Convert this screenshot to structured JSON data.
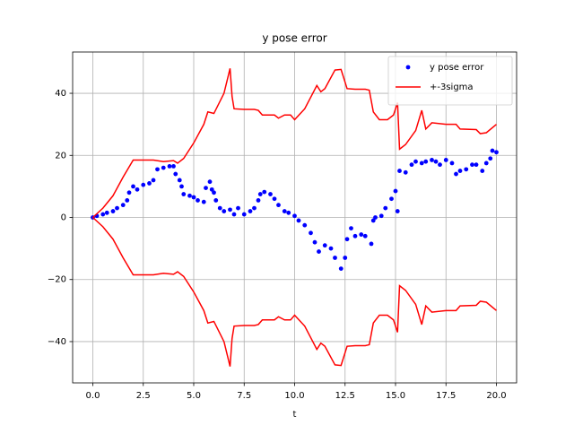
{
  "chart_data": {
    "type": "line",
    "title": "y pose error",
    "xlabel": "t",
    "xlim": [
      -1,
      21
    ],
    "ylim": [
      -53.3,
      53.3
    ],
    "xticks": [
      {
        "value": 0,
        "label": "0.0"
      },
      2.5,
      {
        "value": 5,
        "label": "5.0"
      },
      7.5,
      {
        "value": 10,
        "label": "10.0"
      },
      12.5,
      {
        "value": 15,
        "label": "15.0"
      },
      17.5,
      {
        "value": 20,
        "label": "20.0"
      }
    ],
    "yticks": [
      {
        "value": -40,
        "label": "−40"
      },
      {
        "value": -20,
        "label": "−20"
      },
      0,
      20,
      40
    ],
    "grid": true,
    "legend": "upper right",
    "series": [
      {
        "name": "y pose error",
        "type": "scatter",
        "color": "#0000ff",
        "x": [
          0,
          0.2,
          0.5,
          0.7,
          1,
          1.2,
          1.5,
          1.7,
          1.8,
          2,
          2.2,
          2.5,
          2.8,
          3,
          3.2,
          3.5,
          3.8,
          4,
          4.1,
          4.3,
          4.4,
          4.5,
          4.8,
          5,
          5.2,
          5.5,
          5.6,
          5.8,
          5.9,
          6,
          6.1,
          6.3,
          6.5,
          6.8,
          7,
          7.2,
          7.5,
          7.8,
          8,
          8.2,
          8.3,
          8.5,
          8.8,
          9,
          9.2,
          9.5,
          9.7,
          10,
          10.2,
          10.5,
          10.8,
          11,
          11.2,
          11.5,
          11.8,
          12,
          12.3,
          12.5,
          12.6,
          12.8,
          13,
          13.3,
          13.5,
          13.8,
          13.9,
          14,
          14.3,
          14.5,
          14.8,
          15,
          15.1,
          15.2,
          15.5,
          15.8,
          16,
          16.3,
          16.5,
          16.8,
          17,
          17.2,
          17.5,
          17.8,
          18,
          18.2,
          18.5,
          18.8,
          19,
          19.3,
          19.5,
          19.7,
          19.8,
          20
        ],
        "values": [
          0,
          0.5,
          1,
          1.5,
          2,
          3,
          4,
          5.5,
          8,
          10,
          9,
          10.5,
          11,
          12,
          15.5,
          16,
          16.5,
          16.5,
          14,
          12,
          10,
          7.5,
          7,
          6.5,
          5.5,
          5,
          9.5,
          11.5,
          9,
          8,
          5.5,
          3,
          2,
          2.5,
          1,
          3,
          1,
          2,
          3,
          5.5,
          7.5,
          8.2,
          7.5,
          6,
          4,
          2,
          1.5,
          0.5,
          -1,
          -2.5,
          -5,
          -8,
          -11,
          -9,
          -10,
          -13,
          -16.5,
          -13,
          -7,
          -3.5,
          -6,
          -5.5,
          -6,
          -8.5,
          -1,
          0,
          0.5,
          3,
          6,
          8.5,
          2,
          15,
          14.5,
          17,
          18,
          17.5,
          18,
          18.5,
          18,
          17,
          18.5,
          17.5,
          14,
          15,
          15.5,
          17,
          17,
          15,
          17.5,
          19,
          21.5,
          21
        ]
      },
      {
        "name": "+-3sigma",
        "type": "line",
        "color": "#ff0000",
        "x": [
          0,
          0.5,
          1,
          1.5,
          2,
          2.5,
          3,
          3.5,
          4,
          4.2,
          4.5,
          5,
          5.5,
          5.7,
          6,
          6.5,
          6.8,
          6.9,
          7,
          7.5,
          8,
          8.2,
          8.4,
          9,
          9.2,
          9.5,
          9.8,
          10,
          10.5,
          10.9,
          11.1,
          11.3,
          11.5,
          12,
          12.3,
          12.6,
          13,
          13.5,
          13.7,
          13.9,
          14.2,
          14.6,
          14.9,
          15.1,
          15.2,
          15.5,
          16,
          16.3,
          16.5,
          16.8,
          17.5,
          18,
          18.2,
          19,
          19.2,
          19.5,
          20
        ],
        "values": [
          0,
          3,
          7,
          13,
          18.5,
          18.5,
          18.5,
          18,
          18.3,
          17.5,
          19,
          24,
          30,
          34,
          33.5,
          40,
          48,
          39,
          35,
          34.8,
          34.8,
          34.5,
          33,
          33,
          32,
          33,
          33,
          31.5,
          35,
          40,
          42.5,
          40.5,
          41.5,
          47.5,
          47.7,
          41.5,
          41.3,
          41.3,
          41,
          34,
          31.5,
          31.5,
          33,
          37,
          22,
          23.5,
          28,
          34.5,
          28.5,
          30.5,
          30,
          30,
          28.5,
          28.3,
          27,
          27.3,
          30
        ]
      },
      {
        "type": "line",
        "color": "#ff0000",
        "x": [
          0,
          0.5,
          1,
          1.5,
          2,
          2.5,
          3,
          3.5,
          4,
          4.2,
          4.5,
          5,
          5.5,
          5.7,
          6,
          6.5,
          6.8,
          6.9,
          7,
          7.5,
          8,
          8.2,
          8.4,
          9,
          9.2,
          9.5,
          9.8,
          10,
          10.5,
          10.9,
          11.1,
          11.3,
          11.5,
          12,
          12.3,
          12.6,
          13,
          13.5,
          13.7,
          13.9,
          14.2,
          14.6,
          14.9,
          15.1,
          15.2,
          15.5,
          16,
          16.3,
          16.5,
          16.8,
          17.5,
          18,
          18.2,
          19,
          19.2,
          19.5,
          20
        ],
        "values": [
          0,
          -3,
          -7,
          -13,
          -18.5,
          -18.5,
          -18.5,
          -18,
          -18.3,
          -17.5,
          -19,
          -24,
          -30,
          -34,
          -33.5,
          -40,
          -48,
          -39,
          -35,
          -34.8,
          -34.8,
          -34.5,
          -33,
          -33,
          -32,
          -33,
          -33,
          -31.5,
          -35,
          -40,
          -42.5,
          -40.5,
          -41.5,
          -47.5,
          -47.7,
          -41.5,
          -41.3,
          -41.3,
          -41,
          -34,
          -31.5,
          -31.5,
          -33,
          -37,
          -22,
          -23.5,
          -28,
          -34.5,
          -28.5,
          -30.5,
          -30,
          -30,
          -28.5,
          -28.3,
          -27,
          -27.3,
          -30
        ]
      }
    ]
  }
}
